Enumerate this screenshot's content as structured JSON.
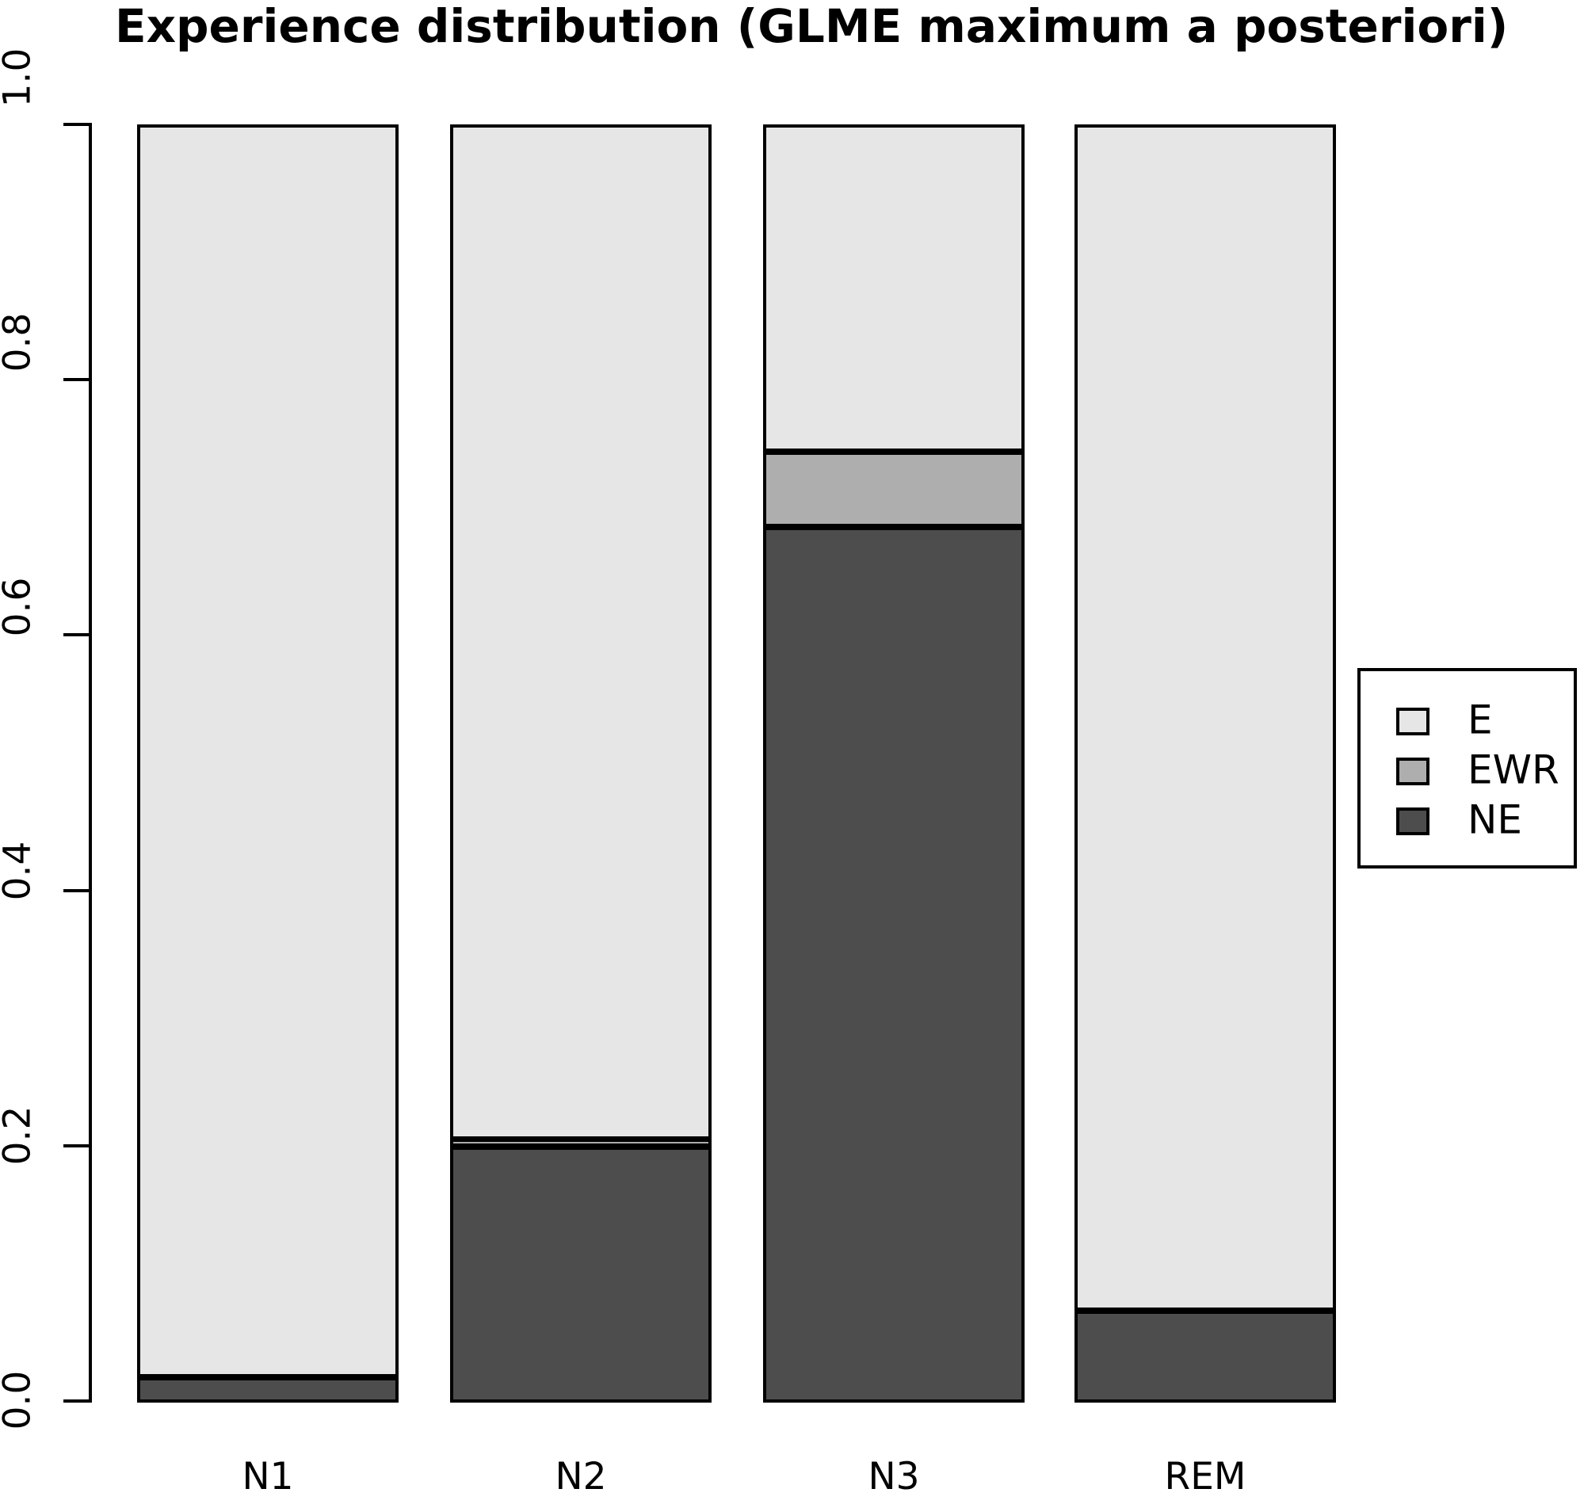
{
  "title": "Experience distribution (GLME maximum a posteriori)",
  "chart_data": {
    "type": "bar",
    "stacked": true,
    "title": "Experience distribution (GLME maximum a posteriori)",
    "xlabel": "",
    "ylabel": "",
    "categories": [
      "N1",
      "N2",
      "N3",
      "REM"
    ],
    "series": [
      {
        "name": "E",
        "color": "#E6E6E6",
        "values": [
          0.98,
          0.794,
          0.256,
          0.928
        ]
      },
      {
        "name": "EWR",
        "color": "#AEAEAE",
        "values": [
          0.0,
          0.006,
          0.059,
          0.0
        ]
      },
      {
        "name": "NE",
        "color": "#4D4D4D",
        "values": [
          0.02,
          0.2,
          0.685,
          0.072
        ]
      }
    ],
    "stack_bottom_to_top": [
      "NE",
      "EWR",
      "E"
    ],
    "ylim": [
      0.0,
      1.0
    ],
    "ytick_labels": [
      "0.0",
      "0.2",
      "0.4",
      "0.6",
      "0.8",
      "1.0"
    ],
    "ytick_values": [
      0.0,
      0.2,
      0.4,
      0.6,
      0.8,
      1.0
    ],
    "grid": false,
    "legend_position": "right",
    "legend_entries": [
      "E",
      "EWR",
      "NE"
    ]
  },
  "colors": {
    "background": "#FFFFFF",
    "axis": "#000000",
    "bar_border": "#000000"
  }
}
